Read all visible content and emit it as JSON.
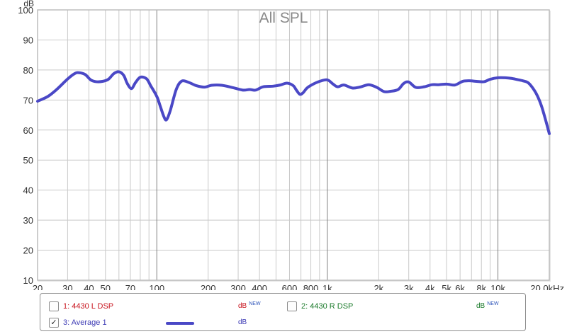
{
  "y_axis": {
    "label": "dB"
  },
  "chart_data": {
    "type": "line",
    "title": "All SPL",
    "xlabel": "",
    "ylabel": "dB",
    "x_scale": "log",
    "xlim": [
      20,
      20000
    ],
    "ylim": [
      10,
      100
    ],
    "grid": true,
    "y_ticks": [
      10,
      20,
      30,
      40,
      50,
      60,
      70,
      80,
      90,
      100
    ],
    "x_ticks": [
      {
        "v": 20,
        "label": "20"
      },
      {
        "v": 30,
        "label": "30"
      },
      {
        "v": 40,
        "label": "40"
      },
      {
        "v": 50,
        "label": "50"
      },
      {
        "v": 70,
        "label": "70"
      },
      {
        "v": 100,
        "label": "100"
      },
      {
        "v": 200,
        "label": "200"
      },
      {
        "v": 300,
        "label": "300"
      },
      {
        "v": 400,
        "label": "400"
      },
      {
        "v": 600,
        "label": "600"
      },
      {
        "v": 800,
        "label": "800"
      },
      {
        "v": 1000,
        "label": "1k"
      },
      {
        "v": 2000,
        "label": "2k"
      },
      {
        "v": 3000,
        "label": "3k"
      },
      {
        "v": 4000,
        "label": "4k"
      },
      {
        "v": 5000,
        "label": "5k"
      },
      {
        "v": 6000,
        "label": "6k"
      },
      {
        "v": 8000,
        "label": "8k"
      },
      {
        "v": 10000,
        "label": "10k"
      },
      {
        "v": 20000,
        "label": "20.0kHz"
      }
    ],
    "series": [
      {
        "name": "3: Average 1",
        "color": "#4a48c6",
        "x": [
          20,
          23,
          26,
          30,
          33,
          35,
          38,
          41,
          44,
          48,
          52,
          56,
          60,
          64,
          67,
          71,
          75,
          80,
          87,
          92,
          100,
          105,
          110,
          114,
          120,
          130,
          140,
          155,
          170,
          190,
          210,
          240,
          280,
          320,
          350,
          380,
          420,
          480,
          530,
          580,
          630,
          660,
          690,
          720,
          760,
          820,
          900,
          1000,
          1080,
          1150,
          1250,
          1400,
          1550,
          1750,
          1950,
          2150,
          2350,
          2600,
          2800,
          3000,
          3300,
          3700,
          4100,
          4500,
          5000,
          5600,
          6200,
          6800,
          7500,
          8300,
          9000,
          10000,
          11000,
          12000,
          13000,
          14000,
          15000,
          16000,
          17000,
          18000,
          19000,
          20000
        ],
        "y": [
          69.6,
          71.2,
          73.6,
          77.0,
          78.8,
          79.1,
          78.5,
          76.7,
          76.1,
          76.2,
          76.9,
          78.8,
          79.4,
          78.2,
          75.6,
          73.8,
          75.8,
          77.6,
          77.1,
          74.8,
          71.2,
          67.8,
          64.5,
          63.4,
          66.5,
          73.5,
          76.3,
          75.8,
          74.8,
          74.3,
          74.9,
          74.9,
          74.1,
          73.3,
          73.5,
          73.3,
          74.4,
          74.6,
          75.0,
          75.6,
          74.8,
          73.2,
          71.9,
          72.4,
          74.0,
          75.2,
          76.2,
          76.7,
          75.3,
          74.4,
          75.0,
          74.0,
          74.3,
          75.1,
          74.2,
          72.8,
          72.9,
          73.5,
          75.5,
          76.0,
          74.2,
          74.4,
          75.1,
          75.1,
          75.3,
          75.0,
          76.2,
          76.4,
          76.2,
          76.1,
          76.9,
          77.4,
          77.4,
          77.2,
          76.8,
          76.4,
          75.8,
          74.0,
          71.5,
          68.0,
          63.5,
          58.8
        ]
      }
    ]
  },
  "legend": {
    "items": [
      {
        "name": "1: 4430 L DSP",
        "checked": "",
        "unit": "dB",
        "badge": "NEW",
        "color": "#c8141e",
        "unit_color": "#c8141e"
      },
      {
        "name": "2: 4430 R DSP",
        "checked": "",
        "unit": "dB",
        "badge": "NEW",
        "color": "#1a7a2a",
        "unit_color": "#1a7a2a"
      },
      {
        "name": "3: Average 1",
        "checked": "✓",
        "unit": "dB",
        "badge": "",
        "color": "#3d3bb5",
        "unit_color": "#3d3bb5",
        "swatch": "#4a48c6"
      }
    ]
  }
}
